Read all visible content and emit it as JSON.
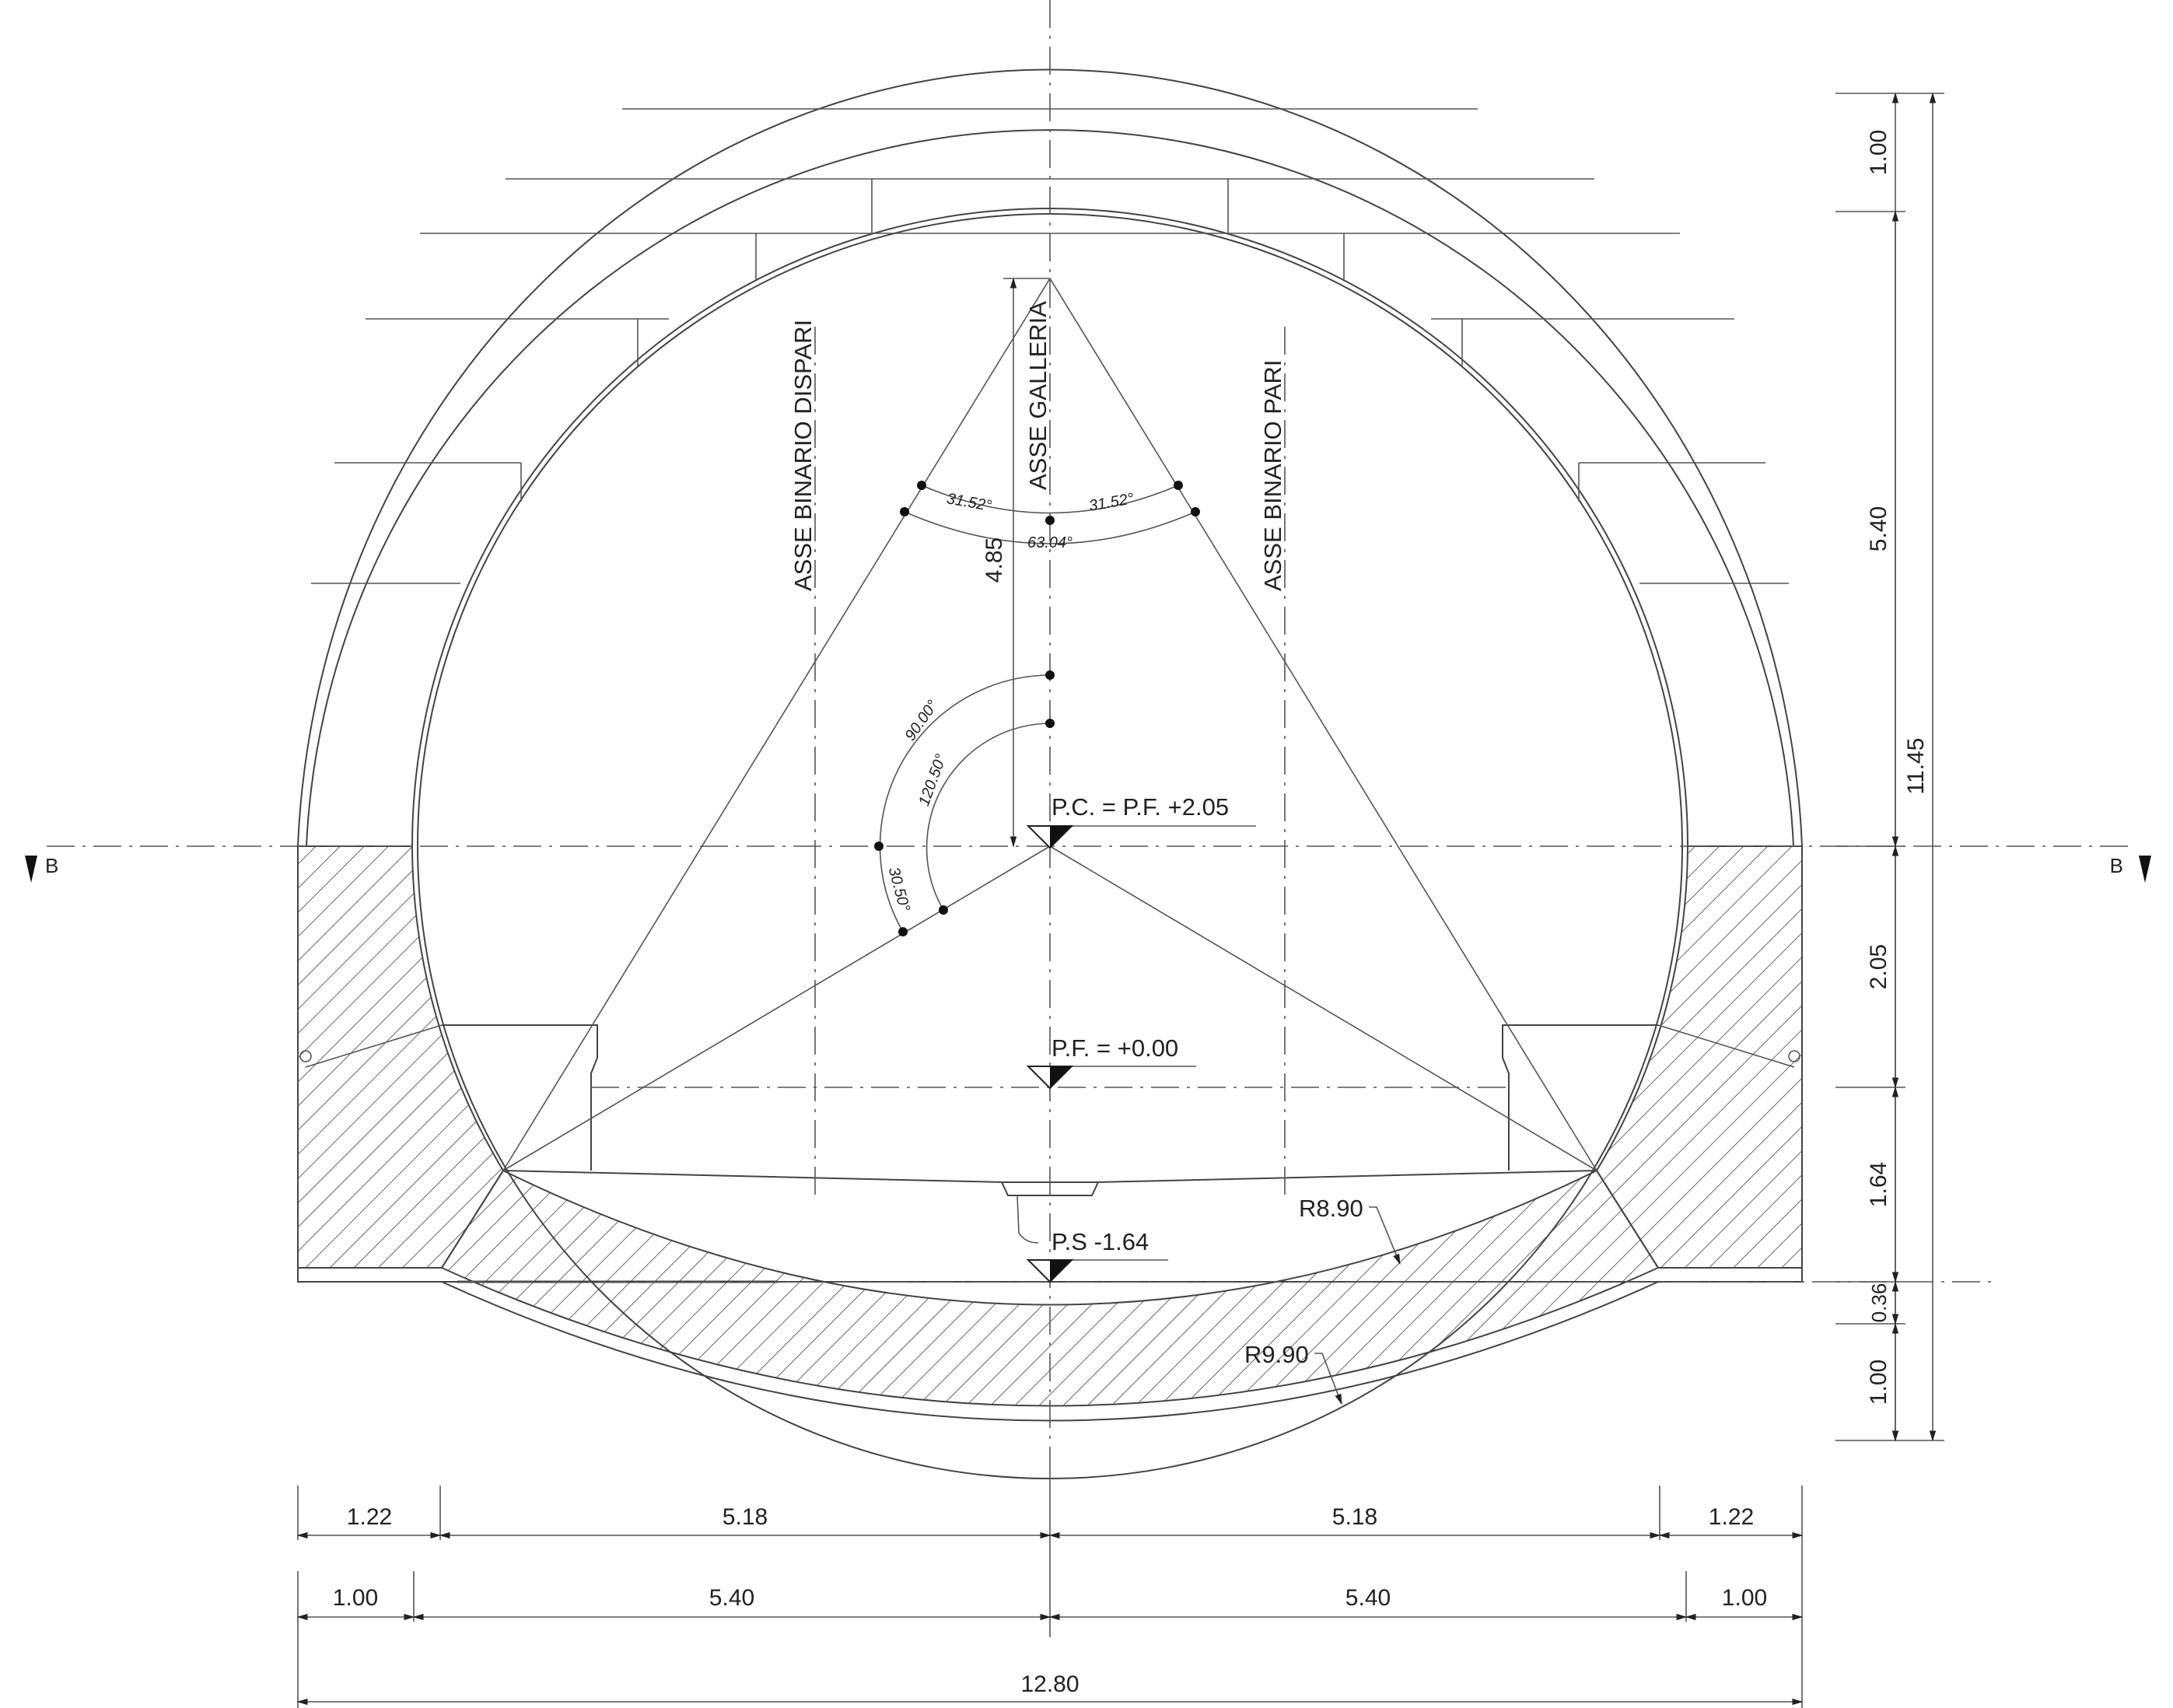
{
  "section_marks": {
    "left": "B",
    "right": "B"
  },
  "axis_labels": {
    "left_track": "ASSE BINARIO DISPARI",
    "tunnel": "ASSE GALLERIA",
    "right_track": "ASSE BINARIO PARI"
  },
  "levels": {
    "pc": "P.C. = P.F. +2.05",
    "pf": "P.F. = +0.00",
    "ps": "P.S -1.64"
  },
  "radii": {
    "inner": "R8.90",
    "outer": "R9.90"
  },
  "angles": {
    "top_left": "31.52°",
    "top_right": "31.52°",
    "top_total": "63.04°",
    "left_90": "90.00°",
    "left_120": "120.50°",
    "left_30": "30.50°"
  },
  "vertical_dim": "4.85",
  "right_dims": {
    "d1": "1.00",
    "d2": "5.40",
    "total": "11.45",
    "d3": "2.05",
    "d4": "1.64",
    "d5": "0.36",
    "d6": "1.00"
  },
  "bottom_row1": [
    "1.22",
    "5.18",
    "5.18",
    "1.22"
  ],
  "bottom_row2": [
    "1.00",
    "5.40",
    "5.40",
    "1.00"
  ],
  "bottom_total": "12.80",
  "colors": {
    "line": "#444444",
    "hatch": "#666666",
    "marker": "#111111"
  }
}
